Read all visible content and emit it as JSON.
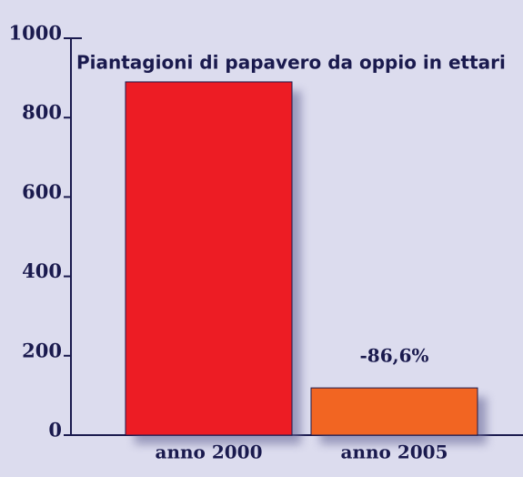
{
  "chart_data": {
    "type": "bar",
    "title": "Piantagioni di papavero da oppio in ettari",
    "categories": [
      "anno 2000",
      "anno 2005"
    ],
    "values": [
      890,
      119
    ],
    "colors": [
      "#ed1c24",
      "#f26522"
    ],
    "annotation": "-86,6%",
    "ylim": [
      0,
      1000
    ],
    "yticks": [
      0,
      200,
      400,
      600,
      800,
      1000
    ]
  }
}
